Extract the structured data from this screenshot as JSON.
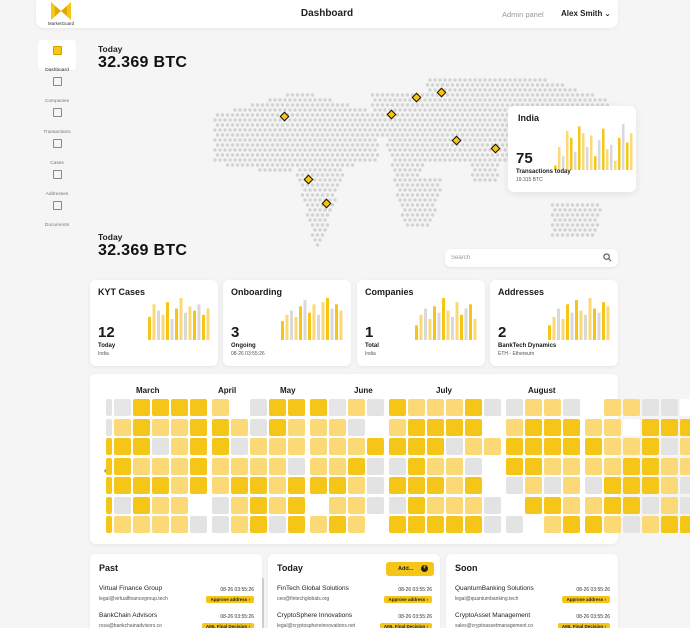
{
  "app": {
    "logo_text": "MarketGuard",
    "page_title": "Dashboard",
    "admin_link": "Admin panel",
    "user_name": "Alex Smith"
  },
  "sidebar": {
    "items": [
      {
        "label": "Dashboard",
        "icon": "dashboard-icon",
        "active": true
      },
      {
        "label": "Companies",
        "icon": "companies-icon",
        "active": false
      },
      {
        "label": "Transactions",
        "icon": "transactions-icon",
        "active": false
      },
      {
        "label": "Cases",
        "icon": "cases-icon",
        "active": false
      },
      {
        "label": "Addresses",
        "icon": "addresses-icon",
        "active": false
      },
      {
        "label": "Documents",
        "icon": "documents-icon",
        "active": false
      }
    ]
  },
  "summary": {
    "top": {
      "label": "Today",
      "value": "32.369 BTC"
    },
    "bottom": {
      "label": "Today",
      "value": "32.369 BTC"
    }
  },
  "map_pins": [
    "North America",
    "South America (north)",
    "South America (south)",
    "Europe West",
    "Europe East",
    "Russia",
    "Middle East",
    "India"
  ],
  "india_card": {
    "title": "India",
    "count": "75",
    "sub": "Transactions today",
    "small": "19.315 BTC",
    "bars": [
      0.1,
      0.5,
      0.3,
      0.85,
      0.7,
      0.4,
      0.95,
      0.8,
      0.5,
      0.75,
      0.3,
      0.65,
      0.9,
      0.45,
      0.55,
      0.2,
      0.7,
      1.0,
      0.6,
      0.8
    ]
  },
  "search": {
    "placeholder": "Search"
  },
  "stats": [
    {
      "title": "KYT Cases",
      "number": "12",
      "sub": "Today",
      "small": "India",
      "bars": [
        0.55,
        0.85,
        0.7,
        0.6,
        0.9,
        0.5,
        0.75,
        1.0,
        0.65,
        0.8,
        0.7,
        0.85,
        0.6,
        0.75
      ]
    },
    {
      "title": "Onboarding",
      "number": "3",
      "sub": "Ongoing",
      "small": "08-26 03:55:26",
      "bars": [
        0.45,
        0.6,
        0.7,
        0.55,
        0.8,
        0.95,
        0.65,
        0.85,
        0.6,
        0.9,
        1.0,
        0.75,
        0.85,
        0.7
      ]
    },
    {
      "title": "Companies",
      "number": "1",
      "sub": "Total",
      "small": "India",
      "bars": [
        0.35,
        0.6,
        0.75,
        0.5,
        0.8,
        0.65,
        1.0,
        0.7,
        0.55,
        0.9,
        0.6,
        0.75,
        0.85,
        0.5
      ]
    },
    {
      "title": "Addresses",
      "number": "2",
      "sub": "BankTech Dynamics",
      "small": "ETH - Ethereum",
      "bars": [
        0.35,
        0.55,
        0.75,
        0.5,
        0.85,
        0.65,
        0.95,
        0.7,
        0.6,
        1.0,
        0.75,
        0.65,
        0.9,
        0.8
      ]
    }
  ],
  "calendar": {
    "months": [
      "March",
      "April",
      "May",
      "June",
      "July",
      "August"
    ],
    "pattern": [
      "1433332013334213222311221022110",
      "1232233213222102333302333220333",
      "3331233122222233331223333322312",
      "3322232222122311322103322223322",
      "3333232332333213332301212133321",
      "3132201232302211322210332233121",
      "3222211231323203333311023321233"
    ]
  },
  "lists": [
    {
      "title": "Past",
      "rows": [
        {
          "name": "Virtual Finance Group",
          "email": "legal@virtualfinancegroup.tech",
          "time": "08-26 03:55:26",
          "badge": "Approve address ›"
        },
        {
          "name": "BankChain Advisors",
          "email": "rosa@bankchainadvisors.co",
          "time": "08-26 03:55:26",
          "badge": "AML Final Decision ›"
        }
      ]
    },
    {
      "title": "Today",
      "add_label": "Add...",
      "rows": [
        {
          "name": "FinTech Global Solutions",
          "email": "ceo@fintechglobals.org",
          "time": "08-26 03:55:26",
          "badge": "Approve address ›"
        },
        {
          "name": "CryptoSphere Innovations",
          "email": "legal@cryptosphereinnovations.net",
          "time": "08-26 03:55:26",
          "badge": "AML Final Decision ›"
        }
      ]
    },
    {
      "title": "Soon",
      "rows": [
        {
          "name": "QuantumBanking Solutions",
          "email": "legal@quantumbanking.tech",
          "time": "08-26 03:55:26",
          "badge": "Approve address ›"
        },
        {
          "name": "CryptoAsset Management",
          "email": "sales@cryptoassetmanagement.co",
          "time": "08-26 03:55:26",
          "badge": "AML Final Decision ›"
        }
      ]
    }
  ],
  "colors": {
    "accent": "#f5c518",
    "accent_light": "#fbd976",
    "neutral_bar": "#d9d9d9",
    "map_dot": "#d3d3d3"
  }
}
